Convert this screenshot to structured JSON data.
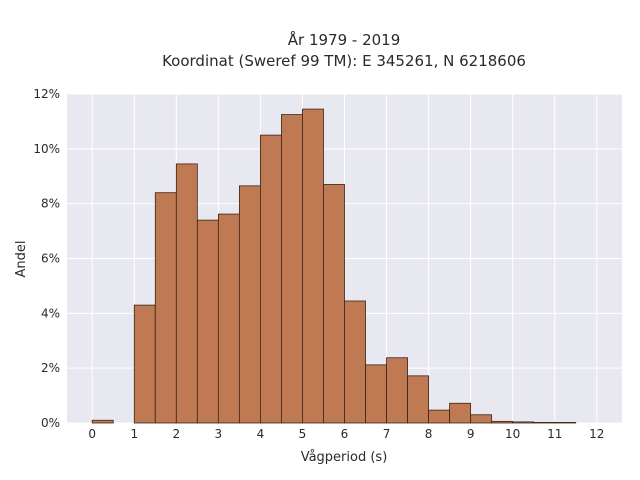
{
  "chart_data": {
    "type": "bar",
    "title_line1": "År 1979 - 2019",
    "title_line2": "Koordinat (Sweref 99 TM): E 345261, N 6218606",
    "xlabel": "Vågperiod (s)",
    "ylabel": "Andel",
    "x_ticks": [
      "0",
      "1",
      "2",
      "3",
      "4",
      "5",
      "6",
      "7",
      "8",
      "9",
      "10",
      "11",
      "12"
    ],
    "y_ticks": [
      "0%",
      "2%",
      "4%",
      "6%",
      "8%",
      "10%",
      "12%"
    ],
    "xlim": [
      -0.6,
      12.6
    ],
    "ylim": [
      0,
      12
    ],
    "grid": true,
    "bar_color": "#c07a53",
    "bar_edge_color": "#3a2418",
    "background_color": "#e8e8f0",
    "bins": [
      {
        "start": 0.0,
        "end": 0.5,
        "value": 0.1
      },
      {
        "start": 1.0,
        "end": 1.5,
        "value": 4.3
      },
      {
        "start": 1.5,
        "end": 2.0,
        "value": 8.4
      },
      {
        "start": 2.0,
        "end": 2.5,
        "value": 9.45
      },
      {
        "start": 2.5,
        "end": 3.0,
        "value": 7.4
      },
      {
        "start": 3.0,
        "end": 3.5,
        "value": 7.62
      },
      {
        "start": 3.5,
        "end": 4.0,
        "value": 8.65
      },
      {
        "start": 4.0,
        "end": 4.5,
        "value": 10.5
      },
      {
        "start": 4.5,
        "end": 5.0,
        "value": 11.25
      },
      {
        "start": 5.0,
        "end": 5.5,
        "value": 11.45
      },
      {
        "start": 5.5,
        "end": 6.0,
        "value": 8.7
      },
      {
        "start": 6.0,
        "end": 6.5,
        "value": 4.45
      },
      {
        "start": 6.5,
        "end": 7.0,
        "value": 2.12
      },
      {
        "start": 7.0,
        "end": 7.5,
        "value": 2.38
      },
      {
        "start": 7.5,
        "end": 8.0,
        "value": 1.72
      },
      {
        "start": 8.0,
        "end": 8.5,
        "value": 0.47
      },
      {
        "start": 8.5,
        "end": 9.0,
        "value": 0.72
      },
      {
        "start": 9.0,
        "end": 9.5,
        "value": 0.3
      },
      {
        "start": 9.5,
        "end": 10.0,
        "value": 0.06
      },
      {
        "start": 10.0,
        "end": 10.5,
        "value": 0.04
      },
      {
        "start": 10.5,
        "end": 11.0,
        "value": 0.02
      },
      {
        "start": 11.0,
        "end": 11.5,
        "value": 0.02
      }
    ]
  }
}
